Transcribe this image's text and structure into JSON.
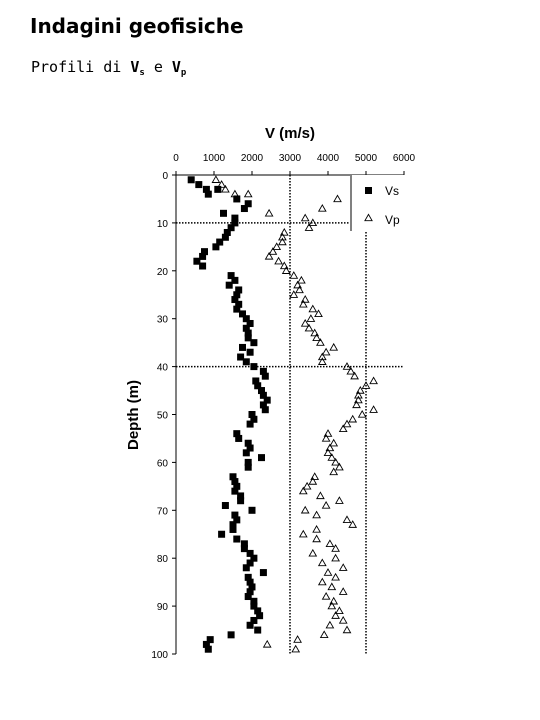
{
  "page": {
    "title": "Indagini geofisiche",
    "subtitle_prefix": "Profili di ",
    "vs_symbol": "V",
    "vs_sub": "s",
    "conj": " e ",
    "vp_symbol": "V",
    "vp_sub": "p"
  },
  "colors": {
    "vs": "#000000",
    "vp": "#000000",
    "grid": "#000000"
  },
  "chart_data": {
    "type": "scatter",
    "title": "V (m/s)",
    "xlabel": "V (m/s)",
    "ylabel": "Depth (m)",
    "xlim": [
      0,
      6000
    ],
    "ylim": [
      0,
      100
    ],
    "y_inverted": true,
    "x_axis_position": "top",
    "x_ticks": [
      0,
      1000,
      2000,
      3000,
      4000,
      5000,
      6000
    ],
    "y_ticks": [
      0,
      10,
      20,
      30,
      40,
      50,
      60,
      70,
      80,
      90,
      100
    ],
    "x_gridlines": [
      3000,
      5000
    ],
    "y_gridlines": [
      10,
      40
    ],
    "legend_position": "top-right",
    "series": [
      {
        "name": "Vs",
        "marker": "filled-square",
        "points": [
          [
            400,
            1
          ],
          [
            600,
            2
          ],
          [
            800,
            3
          ],
          [
            850,
            4
          ],
          [
            1100,
            3
          ],
          [
            1600,
            5
          ],
          [
            1900,
            6
          ],
          [
            1800,
            7
          ],
          [
            1250,
            8
          ],
          [
            1550,
            9
          ],
          [
            1550,
            10
          ],
          [
            1450,
            11
          ],
          [
            1350,
            12
          ],
          [
            1300,
            13
          ],
          [
            1150,
            14
          ],
          [
            1050,
            15
          ],
          [
            750,
            16
          ],
          [
            700,
            17
          ],
          [
            550,
            18
          ],
          [
            700,
            19
          ],
          [
            1450,
            21
          ],
          [
            1550,
            22
          ],
          [
            1400,
            23
          ],
          [
            1650,
            24
          ],
          [
            1600,
            25
          ],
          [
            1550,
            26
          ],
          [
            1650,
            27
          ],
          [
            1600,
            28
          ],
          [
            1750,
            29
          ],
          [
            1850,
            30
          ],
          [
            1950,
            31
          ],
          [
            1850,
            32
          ],
          [
            1900,
            33
          ],
          [
            1900,
            34
          ],
          [
            2050,
            35
          ],
          [
            1750,
            36
          ],
          [
            1950,
            37
          ],
          [
            1700,
            38
          ],
          [
            1850,
            39
          ],
          [
            2050,
            40
          ],
          [
            2300,
            41
          ],
          [
            2350,
            42
          ],
          [
            2100,
            43
          ],
          [
            2150,
            44
          ],
          [
            2250,
            45
          ],
          [
            2300,
            46
          ],
          [
            2400,
            47
          ],
          [
            2300,
            48
          ],
          [
            2350,
            49
          ],
          [
            2000,
            50
          ],
          [
            2050,
            51
          ],
          [
            1950,
            52
          ],
          [
            1600,
            54
          ],
          [
            1650,
            55
          ],
          [
            1900,
            56
          ],
          [
            1950,
            57
          ],
          [
            1850,
            58
          ],
          [
            2250,
            59
          ],
          [
            1900,
            60
          ],
          [
            1900,
            61
          ],
          [
            1500,
            63
          ],
          [
            1550,
            64
          ],
          [
            1600,
            65
          ],
          [
            1550,
            66
          ],
          [
            1700,
            67
          ],
          [
            1700,
            68
          ],
          [
            1300,
            69
          ],
          [
            2000,
            70
          ],
          [
            1550,
            71
          ],
          [
            1600,
            72
          ],
          [
            1500,
            73
          ],
          [
            1500,
            74
          ],
          [
            1200,
            75
          ],
          [
            1600,
            76
          ],
          [
            1800,
            77
          ],
          [
            1800,
            78
          ],
          [
            1950,
            79
          ],
          [
            2050,
            80
          ],
          [
            1950,
            81
          ],
          [
            1850,
            82
          ],
          [
            2300,
            83
          ],
          [
            1900,
            84
          ],
          [
            1950,
            85
          ],
          [
            2000,
            86
          ],
          [
            1950,
            87
          ],
          [
            1900,
            88
          ],
          [
            2050,
            89
          ],
          [
            2050,
            90
          ],
          [
            2150,
            91
          ],
          [
            2200,
            92
          ],
          [
            2050,
            93
          ],
          [
            1950,
            94
          ],
          [
            2150,
            95
          ],
          [
            1450,
            96
          ],
          [
            900,
            97
          ],
          [
            800,
            98
          ],
          [
            850,
            99
          ]
        ]
      },
      {
        "name": "Vp",
        "marker": "open-triangle",
        "points": [
          [
            1050,
            1
          ],
          [
            1200,
            2
          ],
          [
            1300,
            3
          ],
          [
            1550,
            4
          ],
          [
            1900,
            4
          ],
          [
            4250,
            5
          ],
          [
            3850,
            7
          ],
          [
            2450,
            8
          ],
          [
            3400,
            9
          ],
          [
            3600,
            10
          ],
          [
            3500,
            11
          ],
          [
            2850,
            12
          ],
          [
            2800,
            13
          ],
          [
            2800,
            14
          ],
          [
            2650,
            15
          ],
          [
            2550,
            16
          ],
          [
            2450,
            17
          ],
          [
            2700,
            18
          ],
          [
            2850,
            19
          ],
          [
            2900,
            20
          ],
          [
            3100,
            21
          ],
          [
            3300,
            22
          ],
          [
            3200,
            23
          ],
          [
            3250,
            24
          ],
          [
            3100,
            25
          ],
          [
            3400,
            26
          ],
          [
            3350,
            27
          ],
          [
            3600,
            28
          ],
          [
            3750,
            29
          ],
          [
            3550,
            30
          ],
          [
            3400,
            31
          ],
          [
            3500,
            32
          ],
          [
            3650,
            33
          ],
          [
            3700,
            34
          ],
          [
            3800,
            35
          ],
          [
            4150,
            36
          ],
          [
            3950,
            37
          ],
          [
            3850,
            38
          ],
          [
            3850,
            39
          ],
          [
            4500,
            40
          ],
          [
            4600,
            41
          ],
          [
            4700,
            42
          ],
          [
            5200,
            43
          ],
          [
            5000,
            44
          ],
          [
            4850,
            45
          ],
          [
            4800,
            46
          ],
          [
            4800,
            47
          ],
          [
            4750,
            48
          ],
          [
            5200,
            49
          ],
          [
            4900,
            50
          ],
          [
            4650,
            51
          ],
          [
            4500,
            52
          ],
          [
            4400,
            53
          ],
          [
            4000,
            54
          ],
          [
            3950,
            55
          ],
          [
            4150,
            56
          ],
          [
            4050,
            57
          ],
          [
            4000,
            58
          ],
          [
            4100,
            59
          ],
          [
            4200,
            60
          ],
          [
            4300,
            61
          ],
          [
            4150,
            62
          ],
          [
            3650,
            63
          ],
          [
            3600,
            64
          ],
          [
            3450,
            65
          ],
          [
            3350,
            66
          ],
          [
            3800,
            67
          ],
          [
            4300,
            68
          ],
          [
            3950,
            69
          ],
          [
            3400,
            70
          ],
          [
            3700,
            71
          ],
          [
            4500,
            72
          ],
          [
            4650,
            73
          ],
          [
            3700,
            74
          ],
          [
            3350,
            75
          ],
          [
            3700,
            76
          ],
          [
            4050,
            77
          ],
          [
            4200,
            78
          ],
          [
            3600,
            79
          ],
          [
            4200,
            80
          ],
          [
            3850,
            81
          ],
          [
            4400,
            82
          ],
          [
            4000,
            83
          ],
          [
            4200,
            84
          ],
          [
            3850,
            85
          ],
          [
            4100,
            86
          ],
          [
            4400,
            87
          ],
          [
            3950,
            88
          ],
          [
            4150,
            89
          ],
          [
            4100,
            90
          ],
          [
            4300,
            91
          ],
          [
            4200,
            92
          ],
          [
            4400,
            93
          ],
          [
            4050,
            94
          ],
          [
            4500,
            95
          ],
          [
            3900,
            96
          ],
          [
            3200,
            97
          ],
          [
            2400,
            98
          ],
          [
            3150,
            99
          ]
        ]
      }
    ]
  }
}
